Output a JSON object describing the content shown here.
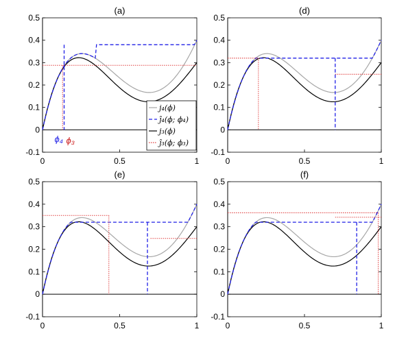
{
  "colors": {
    "j4": "#a6a6a6",
    "j4hat": "#1f1fe6",
    "j3": "#000000",
    "j3hat_line": "#cc1f1f",
    "j3hat_dots": "#e04040",
    "j3_overlap": "#7a1f1f"
  },
  "legend": {
    "entries": [
      "j₄(ϕ)",
      "ĵ₄(ϕ; ϕ₄)",
      "j₃(ϕ)",
      "ĵ₃(ϕ; ϕ₃)"
    ]
  },
  "chart_data": [
    {
      "type": "line",
      "title": "(a)",
      "xlim": [
        0,
        1
      ],
      "ylim": [
        -0.1,
        0.5
      ],
      "xticks": [
        0,
        0.5,
        1
      ],
      "xtick_labels": [
        "0",
        "0.5",
        "1"
      ],
      "yticks": [
        -0.1,
        0,
        0.1,
        0.2,
        0.3,
        0.4,
        0.5
      ],
      "ytick_labels": [
        "-0.1",
        "0",
        "0.1",
        "0.2",
        "0.3",
        "0.4",
        "0.5"
      ],
      "phi4": 0.14,
      "phi3": 0.13,
      "j4_level": 0.38,
      "j3_level": 0.288,
      "annotations": {
        "phi4": "ϕ₄",
        "phi3": "ϕ₃"
      }
    },
    {
      "type": "line",
      "title": "(d)",
      "xlim": [
        0,
        1
      ],
      "ylim": [
        -0.1,
        0.5
      ],
      "xticks": [
        0,
        0.5,
        1
      ],
      "xtick_labels": [
        "0",
        "0.5",
        "1"
      ],
      "yticks": [
        -0.1,
        0,
        0.1,
        0.2,
        0.3,
        0.4,
        0.5
      ],
      "ytick_labels": [
        "-0.1",
        "0",
        "0.1",
        "0.2",
        "0.3",
        "0.4",
        "0.5"
      ],
      "phi4": 0.7,
      "phi3": 0.2,
      "j4_level": 0.32,
      "j3_level": 0.32,
      "j3_right_level": 0.248
    },
    {
      "type": "line",
      "title": "(e)",
      "xlim": [
        0,
        1
      ],
      "ylim": [
        -0.1,
        0.5
      ],
      "xticks": [
        0,
        0.5,
        1
      ],
      "xtick_labels": [
        "0",
        "0.5",
        "1"
      ],
      "yticks": [
        -0.1,
        0,
        0.1,
        0.2,
        0.3,
        0.4,
        0.5
      ],
      "ytick_labels": [
        "-0.1",
        "0",
        "0.1",
        "0.2",
        "0.3",
        "0.4",
        "0.5"
      ],
      "phi4": 0.68,
      "phi3": 0.43,
      "j4_level": 0.32,
      "j3_level": 0.35,
      "j3_right_level": 0.248
    },
    {
      "type": "line",
      "title": "(f)",
      "xlim": [
        0,
        1
      ],
      "ylim": [
        -0.1,
        0.5
      ],
      "xticks": [
        0,
        0.5,
        1
      ],
      "xtick_labels": [
        "0",
        "0.5",
        "1"
      ],
      "yticks": [
        -0.1,
        0,
        0.1,
        0.2,
        0.3,
        0.4,
        0.5
      ],
      "ytick_labels": [
        "-0.1",
        "0",
        "0.1",
        "0.2",
        "0.3",
        "0.4",
        "0.5"
      ],
      "phi4": 0.84,
      "phi3": 0.98,
      "j4_level": 0.32,
      "j3_level": 0.362,
      "j3_right_level": 0.342
    }
  ]
}
